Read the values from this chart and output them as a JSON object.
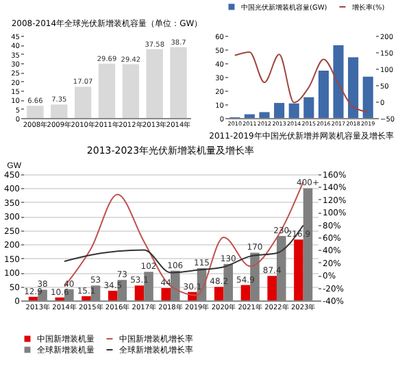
{
  "chart_data": [
    {
      "type": "bar",
      "title": "2008-2014年全球光伏新增装机容量（单位：GW）",
      "categories": [
        "2008年",
        "2009年",
        "2010年",
        "2011年",
        "2012年",
        "2013年",
        "2014年"
      ],
      "series": [
        {
          "color": "#d9d9d9",
          "values": [
            6.66,
            7.35,
            17.07,
            29.69,
            29.42,
            37.58,
            38.7
          ]
        }
      ],
      "data_labels": true,
      "ylim": [
        0,
        45
      ],
      "yticks": [
        0,
        5,
        10,
        15,
        20,
        25,
        30,
        35,
        40,
        45
      ]
    },
    {
      "type": "bar",
      "title": "2011-2019年中国光伏新增并网装机容量及增长率",
      "categories": [
        "2010",
        "2011",
        "2012",
        "2013",
        "2014",
        "2015",
        "2016",
        "2017",
        "2018",
        "2019"
      ],
      "series": [
        {
          "name": "中国光伏新增装机容量(GW)",
          "color": "#3e6aa8",
          "values": [
            0.5,
            2.7,
            4.26,
            10.95,
            10.6,
            15.13,
            34.54,
            53.06,
            44.26,
            30.11
          ]
        },
        {
          "name": "增长率(%)",
          "type": "line",
          "axis": "y2",
          "color": "#a0463f",
          "values": [
            140,
            150,
            58,
            143,
            -3,
            43,
            128,
            54,
            -17,
            -32
          ]
        }
      ],
      "legend": "top",
      "ylim": [
        0,
        60
      ],
      "yticks": [
        0,
        10,
        20,
        30,
        40,
        50,
        60
      ],
      "y2lim": [
        -50,
        200
      ],
      "y2ticks": [
        -50,
        0,
        50,
        100,
        150,
        200
      ]
    },
    {
      "type": "bar",
      "title": "2013-2023年光伏新增装机量及增长率",
      "ylabel": "GW",
      "categories": [
        "2013年",
        "2014年",
        "2015年",
        "2016年",
        "2017年",
        "2018年",
        "2019年",
        "2020年",
        "2021年",
        "2022年",
        "2023年"
      ],
      "series": [
        {
          "name": "中国新增装机量",
          "color": "#e00000",
          "values": [
            12.9,
            10.6,
            15.1,
            34.5,
            53.1,
            44,
            30.1,
            48.2,
            54.9,
            87.4,
            216.9
          ],
          "value_labels": [
            "12.9",
            "10.6",
            "15.1",
            "34.5",
            "53.1",
            "44",
            "30.1",
            "48.2",
            "54.9",
            "87.4",
            "216.9"
          ]
        },
        {
          "name": "全球新增装机量",
          "color": "#808080",
          "values": [
            38,
            40,
            53,
            73,
            102,
            106,
            115,
            130,
            170,
            230,
            400
          ],
          "value_labels": [
            "38",
            "40",
            "53",
            "73",
            "102",
            "106",
            "115",
            "130",
            "170",
            "230",
            "400+"
          ]
        },
        {
          "name": "中国新增装机增长率",
          "type": "line",
          "axis": "y2",
          "color": "#c0504d",
          "values": [
            null,
            -18,
            42,
            128,
            53,
            -17,
            -32,
            60,
            14,
            59,
            148
          ]
        },
        {
          "name": "全球新增装机增长率",
          "type": "line",
          "axis": "y2",
          "color": "#333333",
          "values": [
            null,
            22,
            32,
            38,
            40,
            4,
            8,
            13,
            30,
            35,
            79
          ]
        }
      ],
      "legend": "bottom",
      "grid": "y",
      "ylim": [
        0,
        450
      ],
      "yticks": [
        0,
        50,
        100,
        150,
        200,
        250,
        300,
        350,
        400,
        450
      ],
      "y2lim": [
        -40,
        160
      ],
      "y2ticks": [
        {
          "value": -40,
          "label": "-40%"
        },
        {
          "value": -20,
          "label": "-20%"
        },
        {
          "value": 0,
          "label": "0%"
        },
        {
          "value": 20,
          "label": "20%"
        },
        {
          "value": 40,
          "label": "40%"
        },
        {
          "value": 60,
          "label": "60%"
        },
        {
          "value": 80,
          "label": "80%"
        },
        {
          "value": 100,
          "label": "100%"
        },
        {
          "value": 120,
          "label": "120%"
        },
        {
          "value": 140,
          "label": "140%"
        },
        {
          "value": 160,
          "label": "160%"
        }
      ]
    }
  ]
}
